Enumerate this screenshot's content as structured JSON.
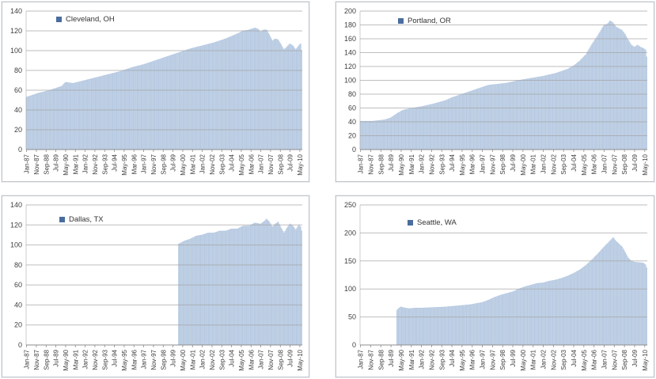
{
  "style": {
    "background": "#ffffff",
    "bar_fill": "#ccd9ea",
    "bar_stripe": "#afc4de",
    "gridline": "#a3a3a3",
    "axis_line": "#8c8c8c",
    "tick_text": "#3f3f3f",
    "legend_marker": "#4a6d9e",
    "legend_text": "#333333",
    "panel_border": "#bfc5ca"
  },
  "x_axis": {
    "x_unit": "month_index_from_Jan-87",
    "months_total": 283,
    "tick_every_months": 10,
    "range_labels": [
      "Jan-87",
      "Jul-10"
    ],
    "tick_labels": [
      "Jan-87",
      "Nov-87",
      "Sep-88",
      "Jul-89",
      "May-90",
      "Mar-91",
      "Jan-92",
      "Nov-92",
      "Sep-93",
      "Jul-94",
      "May-95",
      "Mar-96",
      "Jan-97",
      "Nov-97",
      "Sep-98",
      "Jul-99",
      "May-00",
      "Mar-01",
      "Jan-02",
      "Nov-02",
      "Sep-03",
      "Jul-04",
      "May-05",
      "Mar-06",
      "Jan-07",
      "Nov-07",
      "Sep-08",
      "Jul-09",
      "May-10"
    ]
  },
  "chart_data": [
    {
      "type": "bar",
      "title": "",
      "xlabel": "",
      "ylabel": "",
      "legend_label": "Cleveland, OH",
      "legend_position": "top-left-inside",
      "grid": "horizontal",
      "ylim": [
        0,
        140
      ],
      "y_ticks": [
        0,
        20,
        40,
        60,
        80,
        100,
        120,
        140
      ],
      "series": [
        {
          "name": "Cleveland, OH",
          "encoding": "anchor points [month_index, value], monthly bars linearly interpolated between anchors",
          "points": [
            [
              0,
              53
            ],
            [
              6,
              55
            ],
            [
              12,
              57
            ],
            [
              24,
              60
            ],
            [
              36,
              64
            ],
            [
              40,
              68
            ],
            [
              48,
              67
            ],
            [
              60,
              70
            ],
            [
              72,
              73
            ],
            [
              84,
              76
            ],
            [
              96,
              79
            ],
            [
              108,
              83
            ],
            [
              120,
              86
            ],
            [
              132,
              90
            ],
            [
              144,
              94
            ],
            [
              156,
              98
            ],
            [
              168,
              102
            ],
            [
              180,
              105
            ],
            [
              192,
              108
            ],
            [
              204,
              112
            ],
            [
              216,
              117
            ],
            [
              222,
              120
            ],
            [
              228,
              121
            ],
            [
              234,
              123
            ],
            [
              237,
              122
            ],
            [
              240,
              119
            ],
            [
              243,
              121
            ],
            [
              246,
              121
            ],
            [
              249,
              116
            ],
            [
              252,
              110
            ],
            [
              255,
              112
            ],
            [
              258,
              111
            ],
            [
              261,
              106
            ],
            [
              264,
              101
            ],
            [
              267,
              104
            ],
            [
              270,
              107
            ],
            [
              273,
              105
            ],
            [
              276,
              101
            ],
            [
              279,
              105
            ],
            [
              281,
              107
            ],
            [
              282,
              100
            ]
          ]
        }
      ]
    },
    {
      "type": "bar",
      "title": "",
      "xlabel": "",
      "ylabel": "",
      "legend_label": "Portland, OR",
      "legend_position": "top-left-inside",
      "grid": "horizontal",
      "ylim": [
        0,
        200
      ],
      "y_ticks": [
        0,
        20,
        40,
        60,
        80,
        100,
        120,
        140,
        160,
        180,
        200
      ],
      "series": [
        {
          "name": "Portland, OR",
          "encoding": "anchor points [month_index, value], monthly bars linearly interpolated between anchors",
          "points": [
            [
              0,
              41
            ],
            [
              12,
              41
            ],
            [
              24,
              43
            ],
            [
              30,
              46
            ],
            [
              36,
              52
            ],
            [
              42,
              57
            ],
            [
              48,
              59
            ],
            [
              60,
              62
            ],
            [
              72,
              66
            ],
            [
              84,
              71
            ],
            [
              90,
              75
            ],
            [
              96,
              78
            ],
            [
              102,
              81
            ],
            [
              108,
              84
            ],
            [
              120,
              90
            ],
            [
              126,
              93
            ],
            [
              132,
              94
            ],
            [
              144,
              96
            ],
            [
              150,
              98
            ],
            [
              156,
              100
            ],
            [
              168,
              103
            ],
            [
              180,
              106
            ],
            [
              186,
              108
            ],
            [
              192,
              110
            ],
            [
              198,
              113
            ],
            [
              204,
              116
            ],
            [
              210,
              121
            ],
            [
              216,
              128
            ],
            [
              222,
              137
            ],
            [
              228,
              152
            ],
            [
              234,
              165
            ],
            [
              240,
              180
            ],
            [
              243,
              181
            ],
            [
              246,
              186
            ],
            [
              249,
              183
            ],
            [
              252,
              177
            ],
            [
              258,
              172
            ],
            [
              261,
              166
            ],
            [
              264,
              158
            ],
            [
              267,
              151
            ],
            [
              270,
              148
            ],
            [
              273,
              151
            ],
            [
              276,
              148
            ],
            [
              279,
              146
            ],
            [
              281,
              144
            ],
            [
              282,
              134
            ]
          ]
        }
      ]
    },
    {
      "type": "bar",
      "title": "",
      "xlabel": "",
      "ylabel": "",
      "legend_label": "Dallas, TX",
      "legend_position": "top-left-inside",
      "grid": "horizontal",
      "ylim": [
        0,
        140
      ],
      "y_ticks": [
        0,
        20,
        40,
        60,
        80,
        100,
        120,
        140
      ],
      "series": [
        {
          "name": "Dallas, TX",
          "encoding": "anchor points [month_index, value], monthly bars linearly interpolated between anchors; series starts Jan-00",
          "points": [
            [
              156,
              101
            ],
            [
              162,
              104
            ],
            [
              168,
              106
            ],
            [
              174,
              109
            ],
            [
              180,
              110
            ],
            [
              186,
              112
            ],
            [
              192,
              112
            ],
            [
              198,
              114
            ],
            [
              204,
              114
            ],
            [
              210,
              116
            ],
            [
              216,
              116
            ],
            [
              222,
              119
            ],
            [
              228,
              119
            ],
            [
              234,
              122
            ],
            [
              240,
              121
            ],
            [
              244,
              124
            ],
            [
              246,
              126
            ],
            [
              249,
              123
            ],
            [
              252,
              118
            ],
            [
              255,
              121
            ],
            [
              258,
              123
            ],
            [
              261,
              117
            ],
            [
              264,
              112
            ],
            [
              267,
              117
            ],
            [
              270,
              121
            ],
            [
              273,
              119
            ],
            [
              276,
              115
            ],
            [
              279,
              120
            ],
            [
              281,
              118
            ],
            [
              282,
              114
            ]
          ]
        }
      ]
    },
    {
      "type": "bar",
      "title": "",
      "xlabel": "",
      "ylabel": "",
      "legend_label": "Seattle, WA",
      "legend_position": "top-left-inside",
      "grid": "horizontal",
      "ylim": [
        0,
        250
      ],
      "y_ticks": [
        0,
        50,
        100,
        150,
        200,
        250
      ],
      "series": [
        {
          "name": "Seattle, WA",
          "encoding": "anchor points [month_index, value], monthly bars linearly interpolated between anchors; series starts Jan-90",
          "points": [
            [
              36,
              62
            ],
            [
              38,
              66
            ],
            [
              40,
              68
            ],
            [
              44,
              66
            ],
            [
              48,
              65
            ],
            [
              54,
              66
            ],
            [
              60,
              66
            ],
            [
              72,
              67
            ],
            [
              84,
              68
            ],
            [
              96,
              70
            ],
            [
              108,
              72
            ],
            [
              120,
              76
            ],
            [
              126,
              80
            ],
            [
              132,
              85
            ],
            [
              138,
              89
            ],
            [
              144,
              92
            ],
            [
              150,
              95
            ],
            [
              156,
              100
            ],
            [
              162,
              104
            ],
            [
              168,
              107
            ],
            [
              174,
              110
            ],
            [
              180,
              111
            ],
            [
              186,
              114
            ],
            [
              192,
              116
            ],
            [
              198,
              119
            ],
            [
              204,
              123
            ],
            [
              210,
              128
            ],
            [
              216,
              134
            ],
            [
              222,
              142
            ],
            [
              228,
              152
            ],
            [
              234,
              163
            ],
            [
              240,
              175
            ],
            [
              246,
              186
            ],
            [
              249,
              192
            ],
            [
              252,
              185
            ],
            [
              258,
              175
            ],
            [
              264,
              155
            ],
            [
              267,
              150
            ],
            [
              270,
              148
            ],
            [
              276,
              147
            ],
            [
              279,
              146
            ],
            [
              281,
              143
            ],
            [
              282,
              138
            ]
          ]
        }
      ]
    }
  ]
}
